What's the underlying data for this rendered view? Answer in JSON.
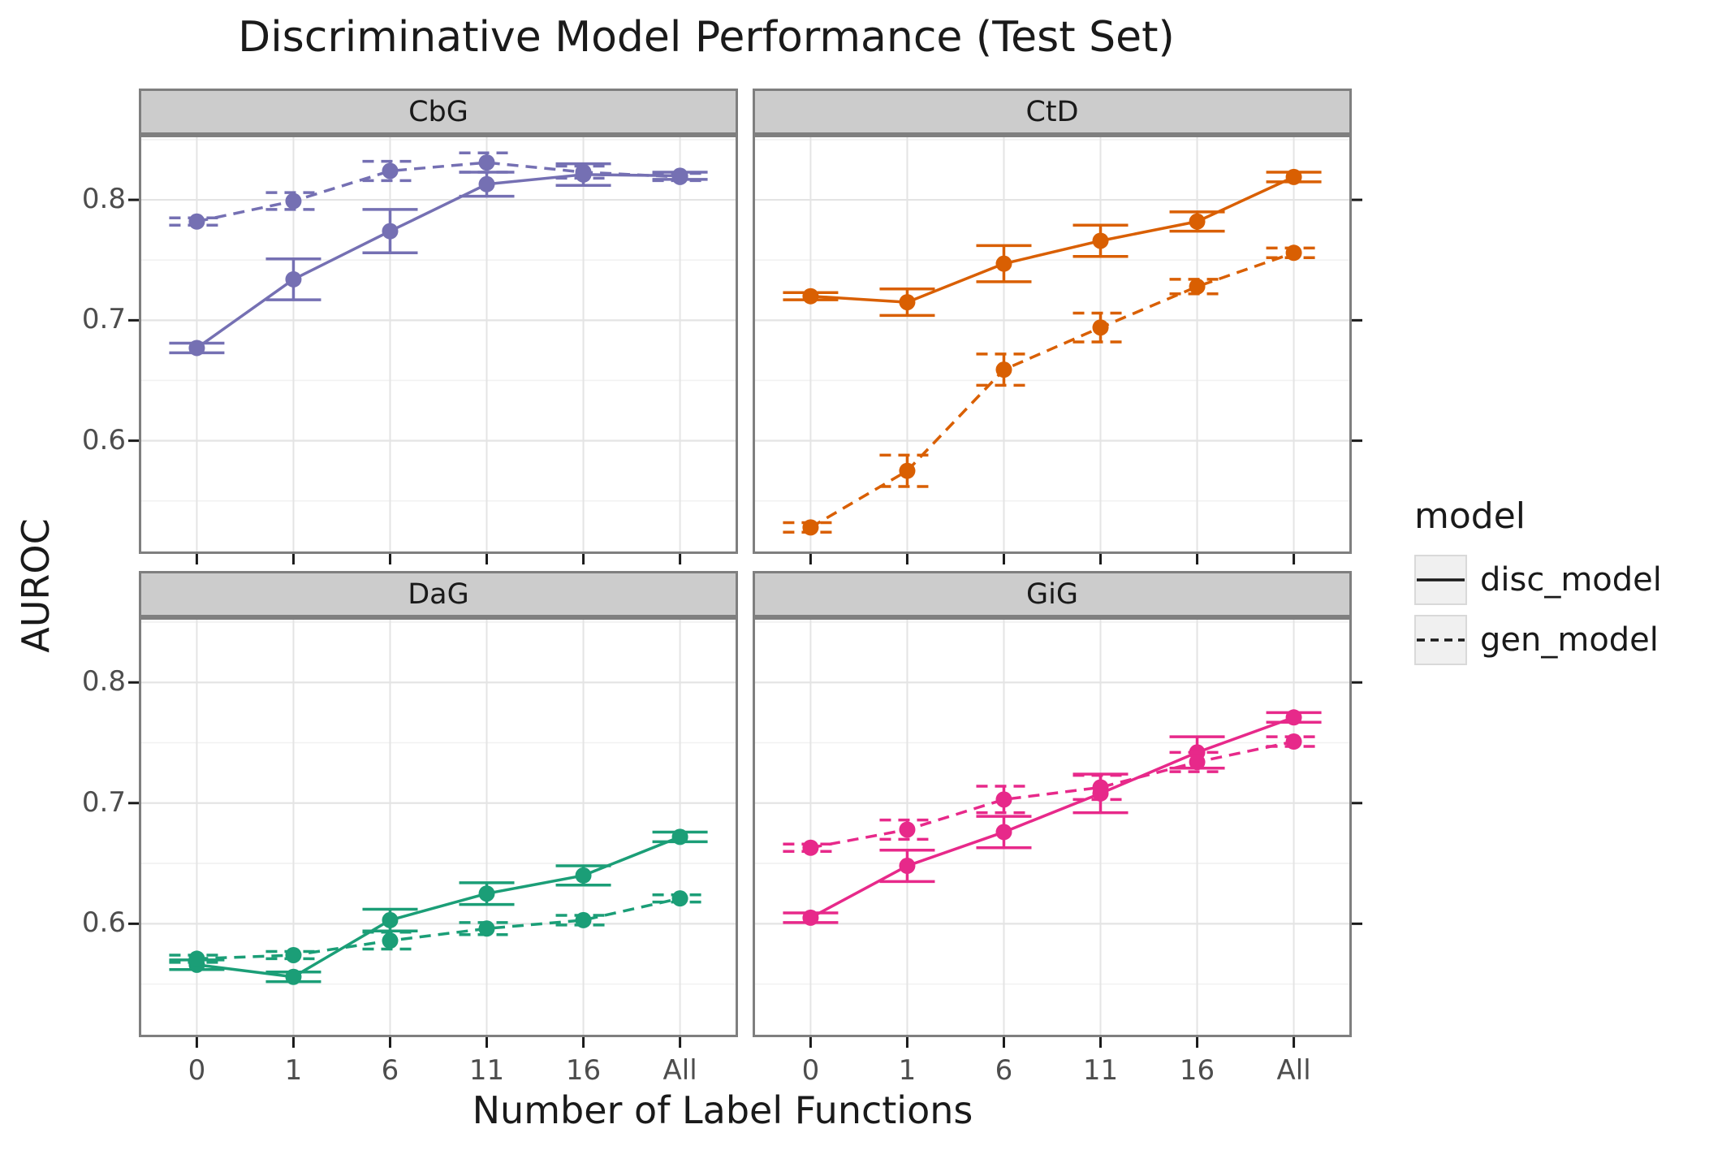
{
  "title": "Discriminative Model Performance (Test Set)",
  "axes": {
    "x_title": "Number of Label Functions",
    "y_title": "AUROC",
    "y_ticks": [
      {
        "value": 0.8,
        "label": "0.8"
      },
      {
        "value": 0.7,
        "label": "0.7"
      },
      {
        "value": 0.6,
        "label": "0.6"
      }
    ]
  },
  "legend": {
    "title": "model",
    "entries": [
      {
        "label": "disc_model",
        "linetype": "solid"
      },
      {
        "label": "gen_model",
        "linetype": "dashed"
      }
    ]
  },
  "chart_data": {
    "type": "line",
    "title": "Discriminative Model Performance (Test Set)",
    "xlabel": "Number of Label Functions",
    "ylabel": "AUROC",
    "categories": [
      "0",
      "1",
      "6",
      "11",
      "16",
      "All"
    ],
    "ylim": [
      0.506,
      0.854
    ],
    "y_major_gridlines": [
      0.6,
      0.7,
      0.8
    ],
    "y_minor_gridlines": [
      0.55,
      0.65,
      0.75,
      0.85
    ],
    "grid": true,
    "legend_title": "model",
    "legend_position": "right",
    "error_bars": true,
    "facets": [
      {
        "label": "CbG",
        "color": "#7570B3",
        "series": [
          {
            "name": "disc_model",
            "linetype": "solid",
            "values": [
              0.677,
              0.734,
              0.774,
              0.813,
              0.821,
              0.82
            ],
            "errors": [
              0.004,
              0.017,
              0.018,
              0.01,
              0.009,
              0.003
            ]
          },
          {
            "name": "gen_model",
            "linetype": "dashed",
            "values": [
              0.782,
              0.799,
              0.824,
              0.831,
              0.823,
              0.819
            ],
            "errors": [
              0.003,
              0.007,
              0.008,
              0.008,
              0.005,
              0.003
            ]
          }
        ]
      },
      {
        "label": "CtD",
        "color": "#D95F02",
        "series": [
          {
            "name": "disc_model",
            "linetype": "solid",
            "values": [
              0.72,
              0.715,
              0.747,
              0.766,
              0.782,
              0.819
            ],
            "errors": [
              0.003,
              0.011,
              0.015,
              0.013,
              0.008,
              0.004
            ]
          },
          {
            "name": "gen_model",
            "linetype": "dashed",
            "values": [
              0.528,
              0.575,
              0.659,
              0.694,
              0.728,
              0.756
            ],
            "errors": [
              0.004,
              0.013,
              0.013,
              0.012,
              0.006,
              0.004
            ]
          }
        ]
      },
      {
        "label": "DaG",
        "color": "#1B9E77",
        "series": [
          {
            "name": "disc_model",
            "linetype": "solid",
            "values": [
              0.566,
              0.556,
              0.603,
              0.625,
              0.64,
              0.672
            ],
            "errors": [
              0.004,
              0.004,
              0.009,
              0.009,
              0.008,
              0.004
            ]
          },
          {
            "name": "gen_model",
            "linetype": "dashed",
            "values": [
              0.571,
              0.574,
              0.586,
              0.596,
              0.603,
              0.621
            ],
            "errors": [
              0.003,
              0.003,
              0.007,
              0.005,
              0.004,
              0.003
            ]
          }
        ]
      },
      {
        "label": "GiG",
        "color": "#E7298A",
        "series": [
          {
            "name": "disc_model",
            "linetype": "solid",
            "values": [
              0.605,
              0.648,
              0.676,
              0.708,
              0.742,
              0.771
            ],
            "errors": [
              0.004,
              0.013,
              0.013,
              0.016,
              0.013,
              0.004
            ]
          },
          {
            "name": "gen_model",
            "linetype": "dashed",
            "values": [
              0.663,
              0.678,
              0.703,
              0.713,
              0.734,
              0.751
            ],
            "errors": [
              0.003,
              0.008,
              0.011,
              0.01,
              0.008,
              0.004
            ]
          }
        ]
      }
    ]
  },
  "style_colors": {
    "strip_fill": "#cccccc",
    "panel_border": "#7f7f7f",
    "major_grid": "#e4e4e4",
    "minor_grid": "#f1f1f1",
    "tick_text": "#4d4d4d"
  }
}
